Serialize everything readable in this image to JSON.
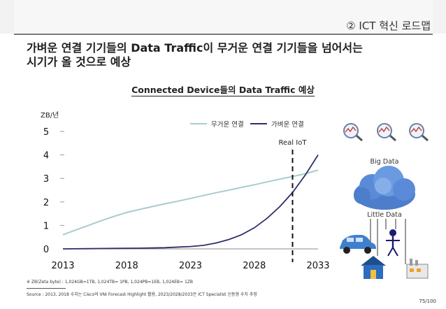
{
  "header": {
    "section": "② ICT 혁신 로드맵"
  },
  "headline": {
    "line1": "가벼운 연결 기기들의 Data Traffic이 무거운 연결 기기들을 넘어서는",
    "line2": "시기가 올 것으로 예상"
  },
  "chart_data": {
    "type": "line",
    "title": "Connected Device들의 Data Traffic 예상",
    "ylabel": "ZB/년",
    "xlabel": "",
    "x_ticks": [
      2013,
      2018,
      2023,
      2028,
      2033
    ],
    "y_ticks": [
      0,
      1,
      2,
      3,
      4,
      5
    ],
    "xlim": [
      2013,
      2033
    ],
    "ylim": [
      0,
      5
    ],
    "legend_position": "top",
    "series": [
      {
        "name": "무거운 연결",
        "color": "#a9cccd",
        "x": [
          2013,
          2014,
          2015,
          2016,
          2017,
          2018,
          2019,
          2020,
          2021,
          2022,
          2023,
          2024,
          2025,
          2026,
          2027,
          2028,
          2029,
          2030,
          2031,
          2032,
          2033
        ],
        "values": [
          0.6,
          0.8,
          1.0,
          1.2,
          1.38,
          1.55,
          1.68,
          1.8,
          1.92,
          2.03,
          2.15,
          2.27,
          2.39,
          2.5,
          2.62,
          2.73,
          2.85,
          2.97,
          3.08,
          3.2,
          3.35
        ]
      },
      {
        "name": "가벼운 연결",
        "color": "#2d2f6b",
        "x": [
          2013,
          2015,
          2017,
          2019,
          2021,
          2023,
          2024,
          2025,
          2026,
          2027,
          2028,
          2029,
          2030,
          2031,
          2032,
          2033
        ],
        "values": [
          0.0,
          0.01,
          0.02,
          0.03,
          0.05,
          0.1,
          0.15,
          0.25,
          0.4,
          0.6,
          0.9,
          1.3,
          1.8,
          2.4,
          3.15,
          4.0
        ]
      }
    ],
    "annotations": [
      {
        "text": "Real IoT",
        "x": 2031
      }
    ]
  },
  "diagram": {
    "big_data_label": "Big Data",
    "little_data_label": "Little Data"
  },
  "footnotes": {
    "unit_note": "※ ZB(Zeta byte) : 1,024GB=1TB, 1,024TB= 1PB, 1,024PB=1EB, 1,024EB= 1ZB",
    "source": "Source : 2013, 2018 수치는 Cisco의 VNI Forecast Highlight 활용, 2023/2028/2033은 ICT Specialist 신동형 수치 추정"
  },
  "page": {
    "number": "75/100"
  }
}
